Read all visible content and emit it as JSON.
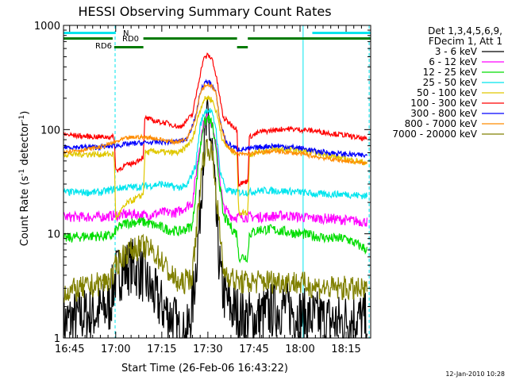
{
  "chart_data": {
    "type": "line",
    "title": "HESSI Observing Summary Count Rates",
    "xlabel": "Start Time (26-Feb-06 16:43:22)",
    "ylabel_main": "Count Rate (s",
    "ylabel_sup1": "-1",
    "ylabel_mid": " detector",
    "ylabel_sup2": "-1",
    "ylabel_end": ")",
    "yscale": "log",
    "ylim": [
      1,
      1000
    ],
    "xlim_minutes": [
      -2,
      98
    ],
    "x_unit": "minutes after 16:45",
    "x_ticks": [
      {
        "t": 0,
        "label": "16:45"
      },
      {
        "t": 15,
        "label": "17:00"
      },
      {
        "t": 30,
        "label": "17:15"
      },
      {
        "t": 45,
        "label": "17:30"
      },
      {
        "t": 60,
        "label": "17:45"
      },
      {
        "t": 75,
        "label": "18:00"
      },
      {
        "t": 90,
        "label": "18:15"
      }
    ],
    "y_ticks": [
      {
        "v": 1,
        "label": "1"
      },
      {
        "v": 10,
        "label": "10"
      },
      {
        "v": 100,
        "label": "100"
      },
      {
        "v": 1000,
        "label": "1000"
      }
    ],
    "legend_header": [
      "Det 1,3,4,5,6,9,",
      "FDecim 1, Att 1"
    ],
    "legend_position": "right",
    "footer_date": "12-Jan-2010 10:28",
    "flags": {
      "n_label": "N",
      "rd0_label": "RD0",
      "rd6_label": "RD6",
      "n_color": "#00e5ee",
      "rd_color": "#007a00",
      "n_segments": [
        [
          -2,
          15
        ],
        [
          79,
          98
        ]
      ],
      "rd0_segments": [
        [
          -2,
          14
        ],
        [
          24,
          54.5
        ],
        [
          58,
          98
        ]
      ],
      "rd6_segments": [
        [
          14.5,
          24
        ],
        [
          54.5,
          58
        ]
      ]
    },
    "vlines_solid": [
      -2,
      76
    ],
    "vlines_dashed": [
      14.8,
      97.5
    ],
    "series": [
      {
        "name": "3 - 6 keV",
        "color": "#000000",
        "points": [
          [
            -2,
            1.4
          ],
          [
            3,
            1.6
          ],
          [
            8,
            1.7
          ],
          [
            13,
            2.0
          ],
          [
            15,
            4.0
          ],
          [
            20,
            5.0
          ],
          [
            24,
            4.0
          ],
          [
            26,
            3.0
          ],
          [
            30,
            2.0
          ],
          [
            34,
            1.5
          ],
          [
            36,
            1.0
          ],
          [
            38,
            1.0
          ],
          [
            40,
            2.0
          ],
          [
            42,
            10
          ],
          [
            43.5,
            60
          ],
          [
            45,
            125
          ],
          [
            46.5,
            60
          ],
          [
            48,
            10
          ],
          [
            49.5,
            3.0
          ],
          [
            52,
            2.0
          ],
          [
            56,
            1.6
          ],
          [
            60,
            1.5
          ],
          [
            65,
            1.8
          ],
          [
            70,
            2.0
          ],
          [
            76,
            1.6
          ],
          [
            82,
            1.5
          ],
          [
            88,
            1.4
          ],
          [
            93,
            1.6
          ],
          [
            97,
            1.4
          ]
        ]
      },
      {
        "name": "6 - 12 keV",
        "color": "#ff00ff",
        "points": [
          [
            -2,
            14.5
          ],
          [
            5,
            14.5
          ],
          [
            10,
            14.5
          ],
          [
            15,
            15
          ],
          [
            20,
            15.5
          ],
          [
            25,
            15
          ],
          [
            30,
            16
          ],
          [
            35,
            16
          ],
          [
            40,
            20
          ],
          [
            42,
            60
          ],
          [
            43.5,
            110
          ],
          [
            45,
            135
          ],
          [
            46.5,
            110
          ],
          [
            48,
            60
          ],
          [
            50,
            18
          ],
          [
            53,
            14.5
          ],
          [
            58,
            14.5
          ],
          [
            63,
            14.5
          ],
          [
            70,
            15
          ],
          [
            75,
            14.5
          ],
          [
            80,
            14
          ],
          [
            85,
            14
          ],
          [
            90,
            13.5
          ],
          [
            97,
            13
          ]
        ]
      },
      {
        "name": "12 - 25 keV",
        "color": "#00dd00",
        "points": [
          [
            -2,
            9
          ],
          [
            5,
            9.5
          ],
          [
            10,
            9.5
          ],
          [
            14.5,
            9.5
          ],
          [
            15,
            11
          ],
          [
            18,
            12.5
          ],
          [
            21,
            13
          ],
          [
            24,
            13
          ],
          [
            28,
            12
          ],
          [
            32,
            11
          ],
          [
            36,
            10.5
          ],
          [
            40,
            12
          ],
          [
            42,
            50
          ],
          [
            43.5,
            110
          ],
          [
            45,
            130
          ],
          [
            46.5,
            110
          ],
          [
            48,
            50
          ],
          [
            50,
            15
          ],
          [
            53,
            11
          ],
          [
            54.5,
            10
          ],
          [
            55,
            6
          ],
          [
            58,
            6
          ],
          [
            58.5,
            10
          ],
          [
            62,
            11
          ],
          [
            66,
            11
          ],
          [
            70,
            10.5
          ],
          [
            75,
            10
          ],
          [
            80,
            9.5
          ],
          [
            85,
            9
          ],
          [
            90,
            9
          ],
          [
            97,
            7
          ]
        ]
      },
      {
        "name": "25 - 50 keV",
        "color": "#00e5ee",
        "points": [
          [
            -2,
            25
          ],
          [
            5,
            25
          ],
          [
            10,
            25
          ],
          [
            15,
            27
          ],
          [
            18,
            28
          ],
          [
            22,
            28
          ],
          [
            24,
            28.5
          ],
          [
            26,
            29
          ],
          [
            30,
            30
          ],
          [
            34,
            28
          ],
          [
            38,
            28
          ],
          [
            41,
            45
          ],
          [
            42.5,
            110
          ],
          [
            44,
            150
          ],
          [
            45,
            155
          ],
          [
            46,
            150
          ],
          [
            47.5,
            110
          ],
          [
            49,
            40
          ],
          [
            51,
            26
          ],
          [
            54.5,
            25
          ],
          [
            58,
            25
          ],
          [
            62,
            26
          ],
          [
            66,
            26
          ],
          [
            72,
            25.5
          ],
          [
            76,
            25
          ],
          [
            80,
            24
          ],
          [
            85,
            24
          ],
          [
            90,
            24
          ],
          [
            97,
            23
          ]
        ]
      },
      {
        "name": "50 - 100 keV",
        "color": "#e0c800",
        "points": [
          [
            -2,
            58
          ],
          [
            5,
            58
          ],
          [
            10,
            58
          ],
          [
            14.5,
            58
          ],
          [
            15,
            14
          ],
          [
            17,
            17
          ],
          [
            19,
            20
          ],
          [
            22,
            22
          ],
          [
            24,
            24
          ],
          [
            24.5,
            60
          ],
          [
            28,
            62
          ],
          [
            32,
            60
          ],
          [
            36,
            60
          ],
          [
            40,
            80
          ],
          [
            42,
            140
          ],
          [
            43.5,
            190
          ],
          [
            45,
            205
          ],
          [
            46.5,
            190
          ],
          [
            48,
            140
          ],
          [
            50,
            75
          ],
          [
            53,
            62
          ],
          [
            54.5,
            60
          ],
          [
            55,
            16
          ],
          [
            58,
            16
          ],
          [
            58.5,
            58
          ],
          [
            62,
            62
          ],
          [
            66,
            64
          ],
          [
            70,
            65
          ],
          [
            75,
            63
          ],
          [
            80,
            60
          ],
          [
            85,
            56
          ],
          [
            90,
            52
          ],
          [
            97,
            48
          ]
        ]
      },
      {
        "name": "100 - 300 keV",
        "color": "#ff0000",
        "points": [
          [
            -2,
            90
          ],
          [
            5,
            86
          ],
          [
            10,
            85
          ],
          [
            14.5,
            85
          ],
          [
            15,
            40
          ],
          [
            18,
            45
          ],
          [
            21,
            48
          ],
          [
            24,
            55
          ],
          [
            24.5,
            130
          ],
          [
            28,
            120
          ],
          [
            32,
            115
          ],
          [
            36,
            105
          ],
          [
            40,
            140
          ],
          [
            42,
            290
          ],
          [
            43.5,
            470
          ],
          [
            45,
            520
          ],
          [
            46.5,
            470
          ],
          [
            48,
            290
          ],
          [
            50,
            130
          ],
          [
            53,
            110
          ],
          [
            54.5,
            100
          ],
          [
            55,
            30
          ],
          [
            58,
            32
          ],
          [
            58.5,
            85
          ],
          [
            62,
            95
          ],
          [
            66,
            98
          ],
          [
            70,
            102
          ],
          [
            75,
            100
          ],
          [
            80,
            97
          ],
          [
            85,
            92
          ],
          [
            90,
            88
          ],
          [
            97,
            80
          ]
        ]
      },
      {
        "name": "300 - 800 keV",
        "color": "#0000ff",
        "points": [
          [
            -2,
            68
          ],
          [
            5,
            68
          ],
          [
            10,
            68
          ],
          [
            15,
            70
          ],
          [
            18,
            72
          ],
          [
            22,
            74
          ],
          [
            26,
            75
          ],
          [
            30,
            76
          ],
          [
            34,
            76
          ],
          [
            38,
            80
          ],
          [
            41,
            130
          ],
          [
            42.5,
            230
          ],
          [
            44,
            280
          ],
          [
            45,
            285
          ],
          [
            46,
            280
          ],
          [
            47.5,
            230
          ],
          [
            49,
            120
          ],
          [
            51,
            75
          ],
          [
            54.5,
            65
          ],
          [
            58,
            65
          ],
          [
            62,
            68
          ],
          [
            66,
            70
          ],
          [
            72,
            68
          ],
          [
            76,
            66
          ],
          [
            80,
            62
          ],
          [
            85,
            60
          ],
          [
            90,
            58
          ],
          [
            97,
            56
          ]
        ]
      },
      {
        "name": "800 - 7000 keV",
        "color": "#ff8c00",
        "points": [
          [
            -2,
            62
          ],
          [
            5,
            64
          ],
          [
            10,
            68
          ],
          [
            15,
            76
          ],
          [
            18,
            82
          ],
          [
            22,
            85
          ],
          [
            26,
            84
          ],
          [
            30,
            80
          ],
          [
            34,
            76
          ],
          [
            38,
            80
          ],
          [
            41,
            130
          ],
          [
            42.5,
            230
          ],
          [
            44,
            265
          ],
          [
            45,
            270
          ],
          [
            46,
            265
          ],
          [
            47.5,
            230
          ],
          [
            49,
            120
          ],
          [
            51,
            70
          ],
          [
            54.5,
            58
          ],
          [
            58,
            58
          ],
          [
            62,
            60
          ],
          [
            66,
            62
          ],
          [
            72,
            60
          ],
          [
            76,
            58
          ],
          [
            80,
            55
          ],
          [
            85,
            52
          ],
          [
            90,
            50
          ],
          [
            97,
            47
          ]
        ]
      },
      {
        "name": "7000 - 20000 keV",
        "color": "#808000",
        "points": [
          [
            -2,
            2.8
          ],
          [
            3,
            2.9
          ],
          [
            8,
            3.2
          ],
          [
            12,
            3.5
          ],
          [
            14.5,
            4
          ],
          [
            15,
            5
          ],
          [
            18,
            6.5
          ],
          [
            21,
            7.2
          ],
          [
            24,
            7.5
          ],
          [
            27,
            6.8
          ],
          [
            30,
            5.5
          ],
          [
            33,
            4
          ],
          [
            36,
            3.2
          ],
          [
            40,
            4
          ],
          [
            42,
            20
          ],
          [
            43.5,
            55
          ],
          [
            45,
            72
          ],
          [
            46.5,
            55
          ],
          [
            48,
            20
          ],
          [
            50,
            4.5
          ],
          [
            54,
            3.5
          ],
          [
            58,
            3.4
          ],
          [
            62,
            3.5
          ],
          [
            66,
            3.5
          ],
          [
            70,
            3.5
          ],
          [
            74,
            3.4
          ],
          [
            78,
            3.2
          ],
          [
            84,
            3
          ],
          [
            90,
            3
          ],
          [
            97,
            2.8
          ]
        ]
      }
    ]
  }
}
